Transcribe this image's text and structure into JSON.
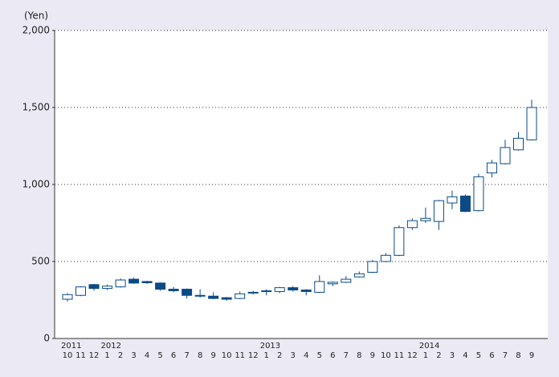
{
  "chart_data": {
    "type": "candlestick",
    "y_label": "(Yen)",
    "categories": [
      "10",
      "11",
      "12",
      "1",
      "2",
      "3",
      "4",
      "5",
      "6",
      "7",
      "8",
      "9",
      "10",
      "11",
      "12",
      "1",
      "2",
      "3",
      "4",
      "5",
      "6",
      "7",
      "8",
      "9",
      "10",
      "11",
      "12",
      "1",
      "2",
      "3",
      "4",
      "5",
      "6",
      "7",
      "8",
      "9"
    ],
    "category_groups": [
      "2011",
      null,
      null,
      "2012",
      null,
      null,
      null,
      null,
      null,
      null,
      null,
      null,
      null,
      null,
      null,
      "2013",
      null,
      null,
      null,
      null,
      null,
      null,
      null,
      null,
      null,
      null,
      null,
      "2014",
      null,
      null,
      null,
      null,
      null,
      null,
      null,
      null
    ],
    "open": [
      255,
      280,
      350,
      325,
      335,
      385,
      370,
      360,
      320,
      320,
      280,
      275,
      265,
      260,
      295,
      305,
      305,
      330,
      315,
      300,
      355,
      365,
      400,
      430,
      500,
      540,
      720,
      765,
      760,
      880,
      925,
      830,
      1075,
      1135,
      1225,
      1290
    ],
    "high": [
      295,
      340,
      355,
      350,
      390,
      395,
      375,
      365,
      335,
      325,
      320,
      300,
      270,
      305,
      310,
      320,
      335,
      340,
      320,
      410,
      370,
      405,
      435,
      510,
      555,
      735,
      780,
      850,
      900,
      960,
      935,
      1070,
      1160,
      1290,
      1340,
      1550
    ],
    "low": [
      240,
      275,
      310,
      315,
      330,
      355,
      355,
      310,
      300,
      260,
      265,
      255,
      245,
      255,
      285,
      280,
      295,
      305,
      280,
      295,
      340,
      360,
      395,
      425,
      495,
      535,
      705,
      750,
      705,
      840,
      820,
      825,
      1045,
      1130,
      1220,
      1285
    ],
    "close": [
      285,
      335,
      325,
      340,
      380,
      360,
      362,
      320,
      310,
      280,
      275,
      260,
      255,
      290,
      300,
      310,
      330,
      315,
      305,
      370,
      365,
      385,
      420,
      500,
      540,
      720,
      765,
      780,
      895,
      920,
      825,
      1050,
      1140,
      1240,
      1300,
      1500
    ],
    "up_color": "#ffffff",
    "down_color": "#0b4a87",
    "stroke_color": "#0b4a87",
    "ylim": [
      0,
      2000
    ],
    "yticks": [
      0,
      500,
      {
        "value": 1000,
        "label": "1,000"
      },
      {
        "value": 1500,
        "label": "1,500"
      },
      {
        "value": 2000,
        "label": "2,000"
      }
    ],
    "grid": true
  }
}
